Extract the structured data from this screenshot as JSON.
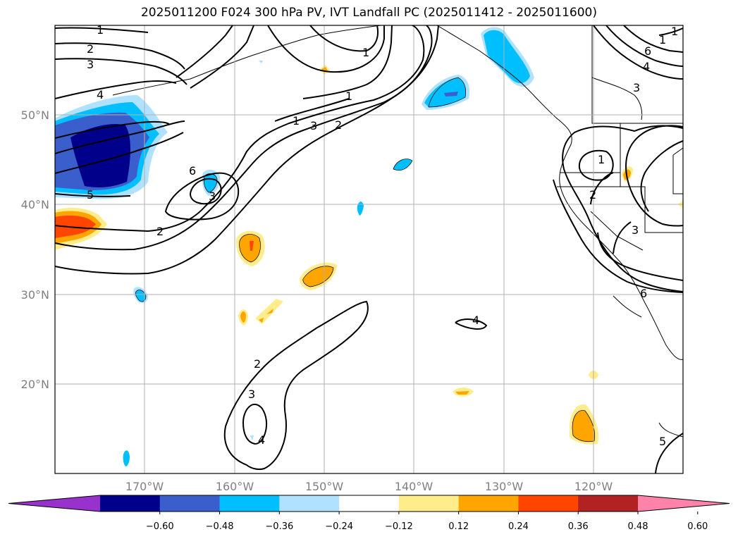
{
  "title": "2025011200 F024 300 hPa PV, IVT Landfall PC (2025011412 - 2025011600)",
  "latitude_labels": [
    "50°N",
    "40°N",
    "30°N",
    "20°N"
  ],
  "longitude_labels": [
    "170°W",
    "160°W",
    "150°W",
    "140°W",
    "130°W",
    "120°W"
  ],
  "colorbar": {
    "colors": [
      "#9932cc",
      "#00008b",
      "#3a5fcd",
      "#00bfff",
      "#b0e2ff",
      "#ffffff",
      "#ffec8b",
      "#ffa500",
      "#ff4500",
      "#b22222",
      "#ff82ab"
    ],
    "tick_labels": [
      "−0.60",
      "−0.48",
      "−0.36",
      "−0.24",
      "−0.12",
      "0.12",
      "0.24",
      "0.36",
      "0.48",
      "0.60"
    ]
  },
  "contour_labels": [
    "1",
    "2",
    "3",
    "4",
    "5",
    "6",
    "3",
    "2",
    "1",
    "3",
    "2",
    "1",
    "1",
    "2",
    "3",
    "4",
    "4",
    "5",
    "6",
    "3",
    "2",
    "1",
    "3",
    "4",
    "6",
    "1",
    "1",
    "2",
    "3",
    "1",
    "3",
    "2",
    "1"
  ]
}
